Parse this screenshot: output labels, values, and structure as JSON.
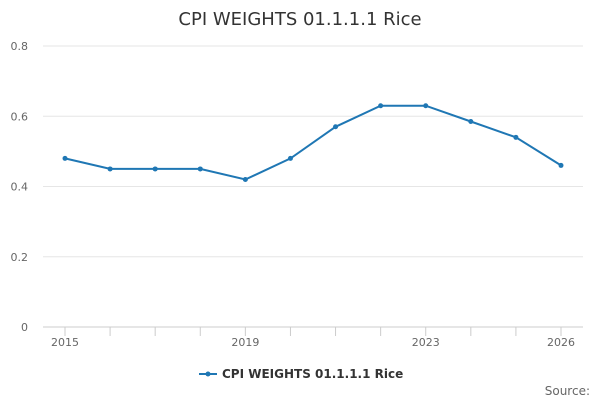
{
  "chart_data": {
    "type": "line",
    "title": "CPI WEIGHTS 01.1.1.1 Rice",
    "xlabel": "",
    "ylabel": "",
    "x": [
      2015,
      2016,
      2017,
      2018,
      2019,
      2020,
      2021,
      2022,
      2023,
      2024,
      2025,
      2026
    ],
    "x_tick_labels": [
      "2015",
      "2019",
      "2023",
      "2026"
    ],
    "y_tick_labels": [
      "0",
      "0.2",
      "0.4",
      "0.6",
      "0.8"
    ],
    "xlim": [
      2015,
      2026
    ],
    "ylim": [
      0,
      0.8
    ],
    "grid": "horizontal",
    "legend_position": "bottom",
    "series": [
      {
        "name": "CPI WEIGHTS 01.1.1.1 Rice",
        "color": "#1f77b4",
        "values": [
          0.48,
          0.45,
          0.45,
          0.45,
          0.42,
          0.48,
          0.57,
          0.63,
          0.63,
          0.585,
          0.54,
          0.46
        ]
      }
    ],
    "source_label": "Source:"
  }
}
